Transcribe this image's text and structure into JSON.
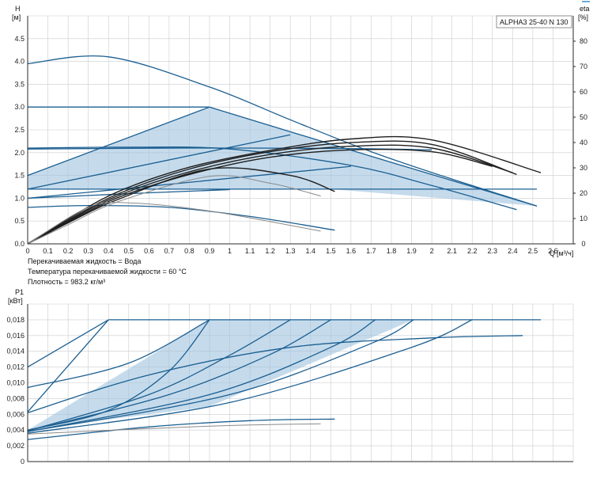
{
  "chart_data": [
    {
      "type": "line",
      "title": "ALPHA3 25-40 N 130",
      "ylabel": "H",
      "yunit": "[м]",
      "y2label": "eta",
      "y2unit": "[%]",
      "xlabel": "Q",
      "xunit": "[м³/ч]",
      "xlim": [
        0,
        2.7
      ],
      "ylim": [
        0,
        5.0
      ],
      "y2lim": [
        0,
        90
      ],
      "x_ticks": [
        "0",
        "0.1",
        "0.2",
        "0.3",
        "0.4",
        "0.5",
        "0.6",
        "0.7",
        "0.8",
        "0.9",
        "1",
        "1.1",
        "1.2",
        "1.3",
        "1.4",
        "1.5",
        "1.6",
        "1.7",
        "1.8",
        "1.9",
        "2",
        "2.1",
        "2.2",
        "2.3",
        "2.4",
        "2.5",
        "2.6"
      ],
      "y_ticks": [
        "0.0",
        "0.5",
        "1.0",
        "1.5",
        "2.0",
        "2.5",
        "3.0",
        "3.5",
        "4.0",
        "4.5"
      ],
      "y2_ticks": [
        "0",
        "10",
        "20",
        "30",
        "40",
        "50",
        "60",
        "70",
        "80"
      ],
      "grid": true,
      "notes": [
        "Перекачиваемая жидкость = Вода",
        "Температура перекачиваемой жидкости = 60 °C",
        "Плотность = 983.2 кг/м³"
      ],
      "band": [
        [
          0,
          1.2
        ],
        [
          0,
          1.5
        ],
        [
          0.9,
          3.0
        ],
        [
          2.52,
          0.83
        ],
        [
          1.5,
          1.2
        ]
      ],
      "series": [
        {
          "color": "blue",
          "points": [
            [
              0,
              3.95
            ],
            [
              0.4,
              4.1
            ],
            [
              0.9,
              3.44
            ],
            [
              1.3,
              2.72
            ],
            [
              1.7,
              2.02
            ],
            [
              2.1,
              1.42
            ],
            [
              2.52,
              0.83
            ]
          ]
        },
        {
          "color": "blue",
          "points": [
            [
              0,
              3.0
            ],
            [
              0.9,
              3.0
            ]
          ]
        },
        {
          "color": "blue",
          "points": [
            [
              0,
              1.5
            ],
            [
              0.9,
              3.0
            ]
          ]
        },
        {
          "color": "blue",
          "points": [
            [
              0.9,
              3.0
            ],
            [
              1.7,
              1.92
            ],
            [
              2.52,
              0.83
            ]
          ]
        },
        {
          "color": "blue",
          "points": [
            [
              0,
              2.1
            ],
            [
              0.5,
              2.12
            ],
            [
              1.0,
              2.08
            ],
            [
              1.6,
              1.72
            ],
            [
              2.0,
              1.28
            ],
            [
              2.42,
              0.75
            ]
          ]
        },
        {
          "color": "blue",
          "points": [
            [
              0,
              2.08
            ],
            [
              0.8,
              2.1
            ],
            [
              1.6,
              2.09
            ],
            [
              2.0,
              2.06
            ]
          ]
        },
        {
          "color": "blue",
          "points": [
            [
              0,
              1.2
            ],
            [
              1.3,
              2.39
            ]
          ]
        },
        {
          "color": "blue",
          "points": [
            [
              0,
              1.0
            ],
            [
              1.6,
              1.7
            ]
          ]
        },
        {
          "color": "blue",
          "points": [
            [
              0,
              1.2
            ],
            [
              2.52,
              1.2
            ]
          ]
        },
        {
          "color": "blue",
          "points": [
            [
              0,
              1.0
            ],
            [
              0.6,
              1.12
            ],
            [
              1.0,
              1.19
            ]
          ]
        },
        {
          "color": "blue",
          "points": [
            [
              0,
              0.8
            ],
            [
              0.3,
              0.84
            ],
            [
              0.7,
              0.8
            ],
            [
              1.1,
              0.6
            ],
            [
              1.52,
              0.3
            ]
          ]
        },
        {
          "color": "black",
          "points": [
            [
              0,
              0
            ],
            [
              0.2,
              0.55
            ],
            [
              0.45,
              1.15
            ],
            [
              0.8,
              1.68
            ],
            [
              1.2,
              2.05
            ],
            [
              1.6,
              2.3
            ],
            [
              2.0,
              2.28
            ],
            [
              2.54,
              1.56
            ]
          ]
        },
        {
          "color": "black",
          "points": [
            [
              0,
              0
            ],
            [
              0.2,
              0.52
            ],
            [
              0.45,
              1.1
            ],
            [
              0.8,
              1.64
            ],
            [
              1.2,
              2.02
            ],
            [
              1.6,
              2.22
            ],
            [
              2.0,
              2.18
            ],
            [
              2.42,
              1.52
            ]
          ]
        },
        {
          "color": "black",
          "points": [
            [
              0,
              0
            ],
            [
              0.2,
              0.5
            ],
            [
              0.45,
              1.06
            ],
            [
              0.8,
              1.58
            ],
            [
              1.2,
              1.96
            ],
            [
              1.6,
              2.14
            ],
            [
              2.0,
              2.1
            ],
            [
              2.4,
              1.56
            ]
          ]
        },
        {
          "color": "black",
          "points": [
            [
              0,
              0
            ],
            [
              0.2,
              0.48
            ],
            [
              0.45,
              1.02
            ],
            [
              0.8,
              1.52
            ],
            [
              1.2,
              1.9
            ],
            [
              1.6,
              2.06
            ],
            [
              2.0,
              2.02
            ],
            [
              2.3,
              1.7
            ]
          ]
        },
        {
          "color": "black",
          "points": [
            [
              0,
              0
            ],
            [
              0.2,
              0.46
            ],
            [
              0.45,
              0.98
            ],
            [
              0.9,
              1.64
            ],
            [
              1.3,
              1.5
            ],
            [
              1.52,
              1.15
            ]
          ]
        },
        {
          "color": "grey",
          "points": [
            [
              0,
              0
            ],
            [
              0.2,
              0.42
            ],
            [
              0.45,
              0.93
            ],
            [
              0.9,
              1.48
            ],
            [
              1.2,
              1.33
            ],
            [
              1.45,
              1.05
            ]
          ]
        },
        {
          "color": "grey",
          "points": [
            [
              0,
              0
            ],
            [
              0.3,
              0.8
            ],
            [
              0.5,
              0.9
            ],
            [
              0.9,
              0.72
            ],
            [
              1.45,
              0.28
            ]
          ]
        }
      ]
    },
    {
      "type": "line",
      "ylabel": "P1",
      "yunit": "[кВт]",
      "xlim": [
        0,
        2.7
      ],
      "ylim": [
        0,
        0.02
      ],
      "y_ticks": [
        "0",
        "0,002",
        "0,004",
        "0,006",
        "0,008",
        "0,010",
        "0,012",
        "0,014",
        "0,016",
        "0,018"
      ],
      "grid": true,
      "band": [
        [
          0,
          0.004
        ],
        [
          0.9,
          0.018
        ],
        [
          1.91,
          0.018
        ],
        [
          0.9,
          0.007
        ],
        [
          0,
          0.004
        ]
      ],
      "series": [
        {
          "color": "blue",
          "points": [
            [
              0,
              0.0063
            ],
            [
              0.4,
              0.018
            ]
          ]
        },
        {
          "color": "blue",
          "points": [
            [
              0,
              0.0094
            ],
            [
              0.5,
              0.0125
            ],
            [
              0.9,
              0.018
            ]
          ]
        },
        {
          "color": "blue",
          "points": [
            [
              0,
              0.012
            ],
            [
              0.4,
              0.018
            ]
          ]
        },
        {
          "color": "blue",
          "points": [
            [
              0.4,
              0.018
            ],
            [
              2.54,
              0.018
            ]
          ]
        },
        {
          "color": "blue",
          "points": [
            [
              0,
              0.004
            ],
            [
              0.4,
              0.0065
            ],
            [
              0.7,
              0.0115
            ],
            [
              0.9,
              0.018
            ]
          ]
        },
        {
          "color": "blue",
          "points": [
            [
              0,
              0.0039
            ],
            [
              0.6,
              0.0085
            ],
            [
              1.0,
              0.0135
            ],
            [
              1.3,
              0.018
            ]
          ]
        },
        {
          "color": "blue",
          "points": [
            [
              0,
              0.0039
            ],
            [
              0.7,
              0.0085
            ],
            [
              1.2,
              0.0136
            ],
            [
              1.5,
              0.018
            ]
          ]
        },
        {
          "color": "blue",
          "points": [
            [
              0,
              0.0038
            ],
            [
              0.9,
              0.0085
            ],
            [
              1.5,
              0.0145
            ],
            [
              1.72,
              0.018
            ]
          ]
        },
        {
          "color": "blue",
          "points": [
            [
              0,
              0.0038
            ],
            [
              1.0,
              0.0085
            ],
            [
              1.7,
              0.015
            ],
            [
              1.91,
              0.018
            ]
          ]
        },
        {
          "color": "blue",
          "points": [
            [
              0,
              0.0036
            ],
            [
              1.0,
              0.0075
            ],
            [
              1.9,
              0.0145
            ],
            [
              2.2,
              0.018
            ]
          ]
        },
        {
          "color": "blue",
          "points": [
            [
              0,
              0.0062
            ],
            [
              0.6,
              0.011
            ],
            [
              1.3,
              0.0145
            ],
            [
              2.0,
              0.0157
            ],
            [
              2.45,
              0.016
            ]
          ]
        },
        {
          "color": "blue",
          "points": [
            [
              0,
              0.0028
            ],
            [
              0.6,
              0.0044
            ],
            [
              1.1,
              0.0052
            ],
            [
              1.52,
              0.0054
            ]
          ]
        },
        {
          "color": "grey",
          "points": [
            [
              0,
              0.0035
            ],
            [
              0.9,
              0.0045
            ],
            [
              1.45,
              0.0048
            ]
          ]
        }
      ]
    }
  ]
}
